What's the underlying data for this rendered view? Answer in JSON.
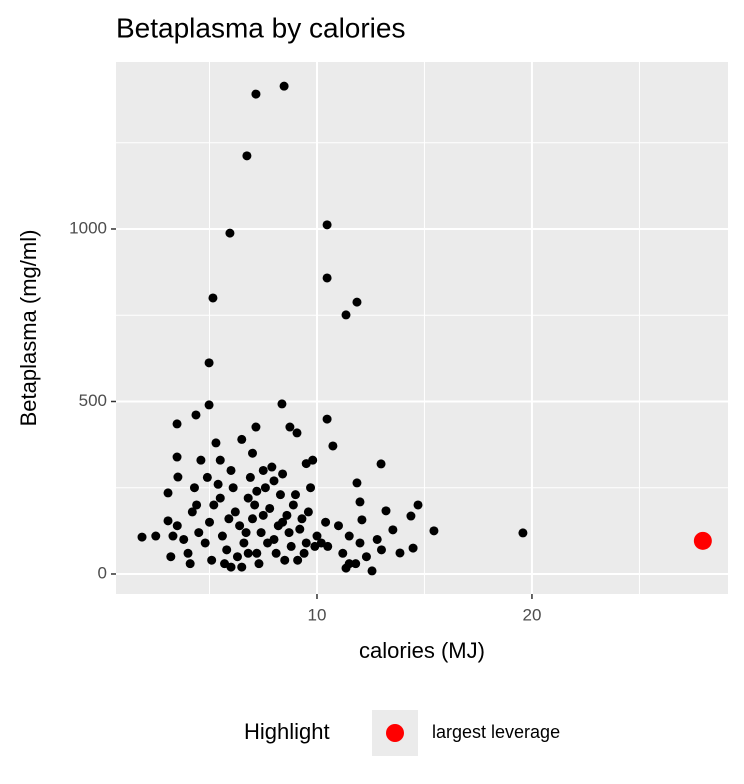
{
  "chart_data": {
    "type": "scatter",
    "title": "Betaplasma by calories",
    "x_label": "calories (MJ)",
    "y_label": "Betaplasma (mg/ml)",
    "legend_title": "Highlight",
    "legend_position": "bottom",
    "xlim": [
      0.65,
      29.12
    ],
    "ylim": [
      -58,
      1484
    ],
    "xticks": [
      10,
      20
    ],
    "yticks": [
      0,
      500,
      1000
    ],
    "grid": true,
    "series": [
      {
        "color": "#000000",
        "x": [
          8.47,
          7.16,
          6.74,
          5.95,
          10.47,
          10.47,
          11.86,
          11.35,
          5.16,
          4.98,
          4.98,
          8.37,
          10.47,
          4.37,
          3.49,
          10.74,
          7.16,
          8.74,
          9.07,
          12.98,
          19.58,
          15.44,
          14.7,
          14.37,
          11.86,
          12.0,
          12.09,
          13.21,
          13.53,
          14.47,
          13.86,
          12.56,
          11.35,
          1.86,
          3.07,
          3.07,
          3.49,
          3.53,
          4.2,
          4.5,
          4.8,
          5.0,
          5.2,
          5.4,
          5.6,
          5.8,
          6.0,
          6.2,
          6.4,
          6.6,
          6.8,
          7.0,
          7.2,
          7.4,
          7.6,
          7.8,
          8.0,
          8.2,
          8.4,
          8.6,
          8.8,
          9.0,
          9.2,
          9.4,
          9.6,
          9.8,
          10.0,
          10.2,
          10.4,
          4.0,
          4.3,
          4.6,
          4.9,
          5.1,
          5.3,
          5.5,
          5.7,
          5.9,
          6.1,
          6.3,
          6.5,
          6.7,
          6.9,
          7.1,
          7.3,
          7.5,
          7.7,
          7.9,
          8.1,
          8.3,
          8.5,
          8.7,
          8.9,
          9.1,
          9.3,
          9.5,
          9.7,
          9.9,
          3.5,
          3.8,
          4.1,
          4.4,
          11.0,
          11.2,
          11.5,
          12.0,
          12.3,
          12.8,
          13.0,
          11.8,
          3.3,
          2.5,
          3.2,
          6.0,
          6.5,
          7.0,
          7.5,
          8.0,
          9.5,
          10.5,
          11.5,
          5.5,
          6.8,
          7.2,
          8.4
        ],
        "values": [
          1414,
          1391,
          1212,
          988,
          1012,
          858,
          788,
          751,
          800,
          612,
          490,
          493,
          449,
          461,
          435,
          371,
          426,
          426,
          409,
          319,
          119,
          125,
          200,
          168,
          264,
          209,
          157,
          183,
          128,
          75,
          61,
          9,
          17,
          107,
          154,
          235,
          339,
          281,
          180,
          120,
          90,
          150,
          200,
          260,
          110,
          70,
          300,
          180,
          140,
          90,
          220,
          160,
          60,
          120,
          250,
          190,
          100,
          140,
          290,
          170,
          80,
          230,
          130,
          60,
          180,
          330,
          110,
          90,
          150,
          60,
          250,
          330,
          280,
          40,
          380,
          220,
          30,
          160,
          250,
          50,
          390,
          120,
          280,
          200,
          30,
          170,
          90,
          310,
          60,
          230,
          40,
          120,
          200,
          40,
          160,
          90,
          250,
          80,
          140,
          100,
          30,
          200,
          140,
          60,
          110,
          90,
          50,
          100,
          70,
          30,
          110,
          110,
          50,
          20,
          20,
          350,
          300,
          270,
          320,
          80,
          30,
          330,
          60,
          240,
          150
        ]
      },
      {
        "name": "largest leverage",
        "color": "#ff0000",
        "x": [
          27.95
        ],
        "values": [
          96
        ]
      }
    ]
  }
}
